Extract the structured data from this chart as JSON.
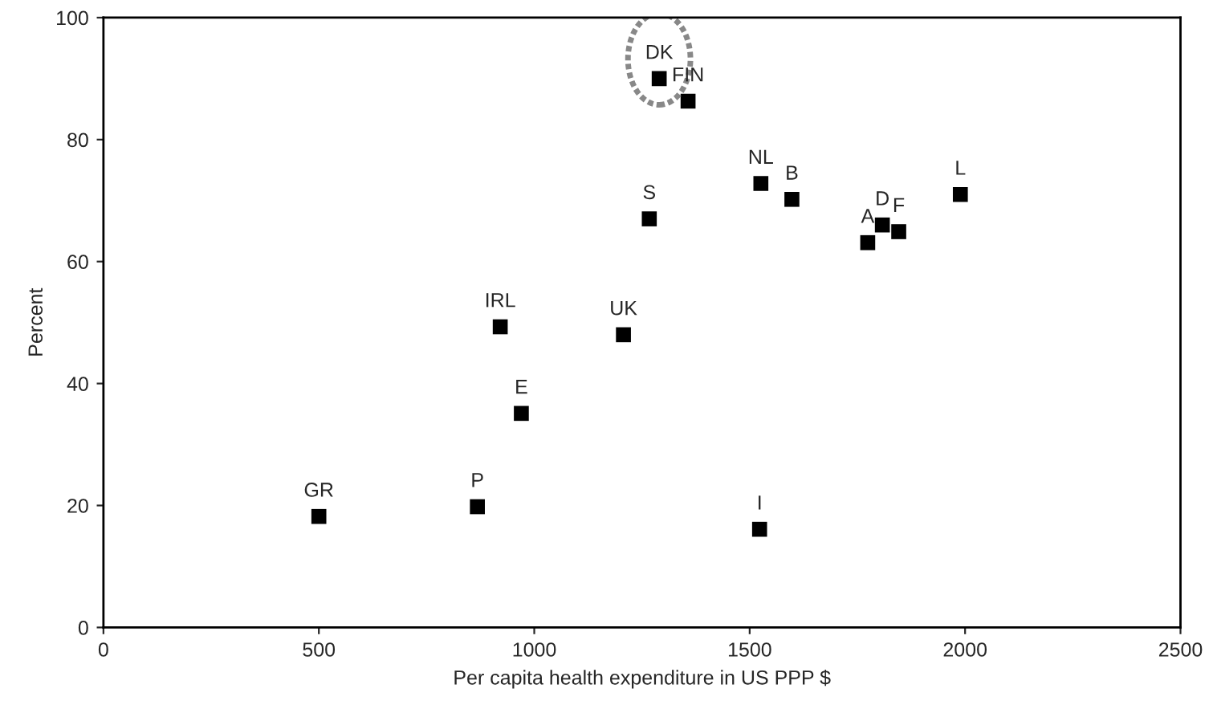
{
  "chart_data": {
    "type": "scatter",
    "xlabel": "Per capita health expenditure in US PPP $",
    "ylabel": "Percent",
    "x": [
      500,
      868,
      921,
      970,
      1207,
      1523,
      1290,
      1357,
      1267,
      1526,
      1598,
      1774,
      1808,
      1846,
      1989
    ],
    "values": [
      18.2,
      19.8,
      49.3,
      35.1,
      48.0,
      16.1,
      90.0,
      86.3,
      67.0,
      72.8,
      70.2,
      63.1,
      66.0,
      64.9,
      71.0
    ],
    "color": "#000000",
    "marker": "square",
    "grid": false,
    "annotations": [
      {
        "text": "GR",
        "x": 500,
        "y": 18.2
      },
      {
        "text": "P",
        "x": 868,
        "y": 19.8
      },
      {
        "text": "IRL",
        "x": 921,
        "y": 49.3
      },
      {
        "text": "E",
        "x": 970,
        "y": 35.1
      },
      {
        "text": "UK",
        "x": 1207,
        "y": 48.0
      },
      {
        "text": "I",
        "x": 1523,
        "y": 16.1
      },
      {
        "text": "DK",
        "x": 1290,
        "y": 90.0
      },
      {
        "text": "FIN",
        "x": 1357,
        "y": 86.3
      },
      {
        "text": "S",
        "x": 1267,
        "y": 67.0
      },
      {
        "text": "NL",
        "x": 1526,
        "y": 72.8
      },
      {
        "text": "B",
        "x": 1598,
        "y": 70.2
      },
      {
        "text": "A",
        "x": 1774,
        "y": 63.1
      },
      {
        "text": "D",
        "x": 1808,
        "y": 66.0
      },
      {
        "text": "F",
        "x": 1846,
        "y": 64.9
      },
      {
        "text": "L",
        "x": 1989,
        "y": 71.0
      }
    ],
    "xlim": [
      0,
      2500
    ],
    "xticks": [
      0,
      500,
      1000,
      1500,
      2000,
      2500
    ],
    "ylim": [
      0,
      100
    ],
    "yticks": [
      0,
      20,
      40,
      60,
      80,
      100
    ]
  }
}
